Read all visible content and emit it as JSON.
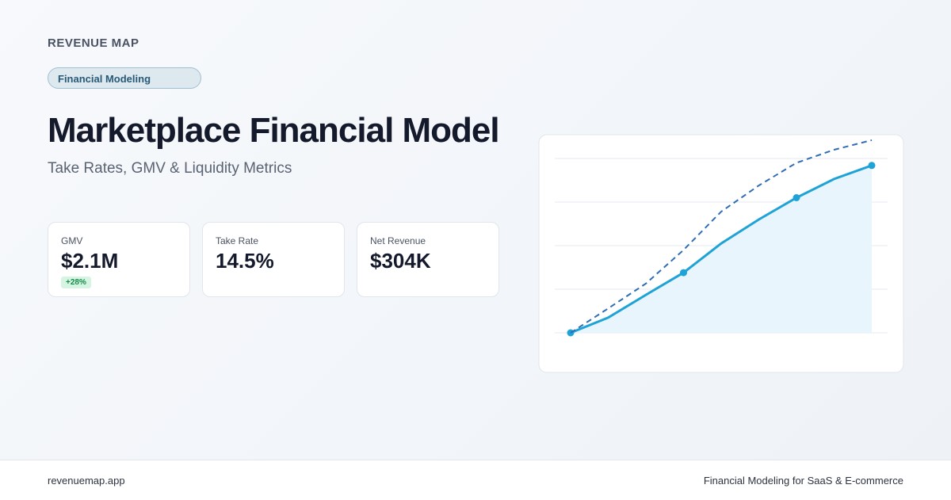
{
  "brand": "REVENUE MAP",
  "badge": "Financial Modeling",
  "title": "Marketplace Financial Model",
  "subtitle": "Take Rates, GMV & Liquidity Metrics",
  "metrics": [
    {
      "label": "GMV",
      "value": "$2.1M",
      "change": "+28%"
    },
    {
      "label": "Take Rate",
      "value": "14.5%"
    },
    {
      "label": "Net Revenue",
      "value": "$304K"
    }
  ],
  "chart_data": {
    "type": "line",
    "categories": [
      null,
      null,
      null,
      null,
      null,
      null,
      null,
      null,
      null
    ],
    "series": [
      {
        "color": "#1fa3d6",
        "fill": "#e8f5fc",
        "markers": [
          0,
          3,
          6,
          8
        ],
        "values": [
          0,
          0.35,
          0.87,
          1.38,
          2.05,
          2.6,
          3.1,
          3.53,
          3.84
        ]
      },
      {
        "color": "#2f6db5",
        "dashed": true,
        "values": [
          0,
          0.56,
          1.13,
          1.9,
          2.78,
          3.38,
          3.9,
          4.2,
          4.42
        ]
      }
    ],
    "ylim": [
      0,
      4.5
    ],
    "yticks": [
      0,
      1,
      2,
      3,
      4
    ],
    "grid": true
  },
  "footer": {
    "left": "revenuemap.app",
    "right": "Financial Modeling for SaaS & E-commerce"
  }
}
